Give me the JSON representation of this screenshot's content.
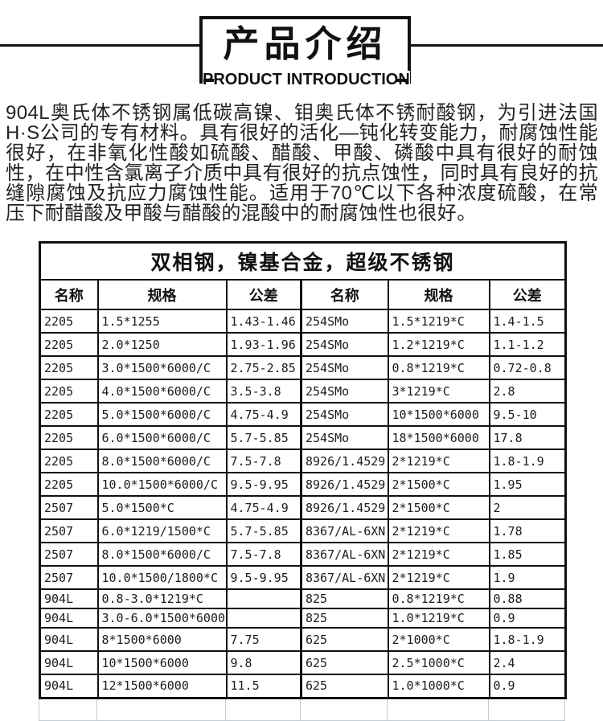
{
  "header": {
    "title": "产品介绍",
    "subtitle": "PRODUCT INTRODUCTION"
  },
  "intro_paragraph": "904L奥氏体不锈钢属低碳高镍、钼奥氏体不锈耐酸钢，为引进法国H·S公司的专有材料。具有很好的活化—钝化转变能力，耐腐蚀性能很好，在非氧化性酸如硫酸、醋酸、甲酸、磷酸中具有很好的耐蚀性，在中性含氯离子介质中具有很好的抗点蚀性，同时具有良好的抗缝隙腐蚀及抗应力腐蚀性能。适用于70℃以下各种浓度硫酸，在常压下耐醋酸及甲酸与醋酸的混酸中的耐腐蚀性也很好。",
  "table": {
    "title": "双相钢，镍基合金，超级不锈钢",
    "headers": [
      "名称",
      "规格",
      "公差",
      "名称",
      "规格",
      "公差"
    ],
    "rows": [
      [
        "2205",
        "1.5*1255",
        "1.43-1.46",
        "254SMo",
        "1.5*1219*C",
        "1.4-1.5"
      ],
      [
        "2205",
        "2.0*1250",
        "1.93-1.96",
        "254SMo",
        "1.2*1219*C",
        "1.1-1.2"
      ],
      [
        "2205",
        "3.0*1500*6000/C",
        "2.75-2.85",
        "254SMo",
        "0.8*1219*C",
        "0.72-0.8"
      ],
      [
        "2205",
        "4.0*1500*6000/C",
        "3.5-3.8",
        "254SMo",
        "3*1219*C",
        "2.8"
      ],
      [
        "2205",
        "5.0*1500*6000/C",
        "4.75-4.9",
        "254SMo",
        "10*1500*6000",
        "9.5-10"
      ],
      [
        "2205",
        "6.0*1500*6000/C",
        "5.7-5.85",
        "254SMo",
        "18*1500*6000",
        "17.8"
      ],
      [
        "2205",
        "8.0*1500*6000/C",
        "7.5-7.8",
        "8926/1.4529",
        "2*1219*C",
        "1.8-1.9"
      ],
      [
        "2205",
        "10.0*1500*6000/C",
        "9.5-9.95",
        "8926/1.4529",
        "2*1500*C",
        "1.95"
      ],
      [
        "2507",
        "5.0*1500*C",
        "4.75-4.9",
        "8926/1.4529",
        "2*1500*C",
        "2"
      ],
      [
        "2507",
        "6.0*1219/1500*C",
        "5.7-5.85",
        "8367/AL-6XN",
        "2*1219*C",
        "1.78"
      ],
      [
        "2507",
        "8.0*1500*6000/C",
        "7.5-7.8",
        "8367/AL-6XN",
        "2*1219*C",
        "1.85"
      ],
      [
        "2507",
        "10.0*1500/1800*C",
        "9.5-9.95",
        "8367/AL-6XN",
        "2*1219*C",
        "1.9"
      ],
      [
        "904L",
        "0.8-3.0*1219*C",
        "",
        "825",
        "0.8*1219*C",
        "0.88"
      ],
      [
        "904L",
        "3.0-6.0*1500*6000",
        "",
        "825",
        "1.0*1219*C",
        "0.9"
      ],
      [
        "904L",
        "8*1500*6000",
        "7.75",
        "625",
        "2*1000*C",
        "1.8-1.9"
      ],
      [
        "904L",
        "10*1500*6000",
        "9.8",
        "625",
        "2.5*1000*C",
        "2.4"
      ],
      [
        "904L",
        "12*1500*6000",
        "11.5",
        "625",
        "1.0*1000*C",
        "0.9"
      ]
    ]
  },
  "colors": {
    "line_black": "#111111",
    "text_dark": "#222222",
    "ghost_border": "#c6ccd4"
  }
}
